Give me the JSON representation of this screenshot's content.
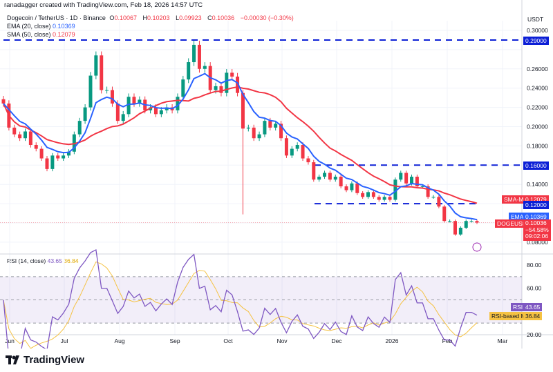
{
  "credit": "ranadagger created with TradingView.com, Feb 18, 2026 14:57 UTC",
  "symbol": {
    "title": "Dogecoin / TetherUS · 1D · Binance",
    "o_label": "O",
    "o": "0.10067",
    "h_label": "H",
    "h": "0.10203",
    "l_label": "L",
    "l": "0.09923",
    "c_label": "C",
    "c": "0.10036",
    "change": "−0.00030 (−0.30%)"
  },
  "indicators": {
    "ema_label": "EMA (20, close)",
    "ema_value": "0.10369",
    "sma_label": "SMA (50, close)",
    "sma_value": "0.12079",
    "rsi_label": "RSI (14, close)",
    "rsi_value": "43.65",
    "rsi_ma_value": "36.84"
  },
  "currency": "USDT",
  "price_tags": {
    "level_029": "0.29000",
    "level_016": "0.16000",
    "level_012": "0.12000",
    "sma_name": "SMA-MA",
    "sma": "0.12079",
    "ema_name": "EMA",
    "ema": "0.10369",
    "sym_name": "DOGEUSDT",
    "price": "0.10036",
    "pct": "−54.58%",
    "countdown": "09:02:06"
  },
  "rsi_tags": {
    "rsi_name": "RSI",
    "rsi": "43.65",
    "ma_name": "RSI-based MA",
    "ma": "36.84"
  },
  "logo": "TradingView",
  "colors": {
    "up": "#089981",
    "down": "#f23645",
    "ema": "#2962ff",
    "sma": "#f23645",
    "level": "#0c1fd6",
    "rsi": "#7e57c2",
    "rsi_ma": "#f5c242"
  },
  "chart_data": {
    "type": "candlestick",
    "y_range": [
      0.07,
      0.31
    ],
    "y_ticks": [
      "0.30000",
      "0.26000",
      "0.24000",
      "0.22000",
      "0.20000",
      "0.18000",
      "0.14000",
      "0.08000"
    ],
    "x_ticks": [
      "Jun",
      "Jul",
      "Aug",
      "Sep",
      "Oct",
      "Nov",
      "Dec",
      "2026",
      "Feb",
      "Mar"
    ],
    "horizontal_levels": [
      0.29,
      0.16,
      0.12
    ],
    "rsi_ticks": [
      "80.00",
      "60.00",
      "20.00"
    ],
    "rsi_band": [
      30,
      70
    ],
    "closes": [
      0.224,
      0.199,
      0.192,
      0.188,
      0.195,
      0.181,
      0.177,
      0.167,
      0.156,
      0.17,
      0.167,
      0.17,
      0.174,
      0.192,
      0.206,
      0.22,
      0.253,
      0.274,
      0.238,
      0.238,
      0.224,
      0.206,
      0.213,
      0.231,
      0.224,
      0.228,
      0.217,
      0.22,
      0.213,
      0.217,
      0.22,
      0.217,
      0.231,
      0.249,
      0.267,
      0.285,
      0.26,
      0.263,
      0.238,
      0.242,
      0.235,
      0.256,
      0.252,
      0.235,
      0.198,
      0.199,
      0.188,
      0.192,
      0.206,
      0.199,
      0.203,
      0.188,
      0.17,
      0.177,
      0.181,
      0.167,
      0.163,
      0.145,
      0.148,
      0.152,
      0.145,
      0.148,
      0.138,
      0.134,
      0.141,
      0.131,
      0.127,
      0.132,
      0.127,
      0.124,
      0.127,
      0.124,
      0.145,
      0.152,
      0.141,
      0.148,
      0.138,
      0.138,
      0.127,
      0.127,
      0.117,
      0.102,
      0.102,
      0.088,
      0.095,
      0.102,
      0.102,
      0.10036
    ]
  }
}
